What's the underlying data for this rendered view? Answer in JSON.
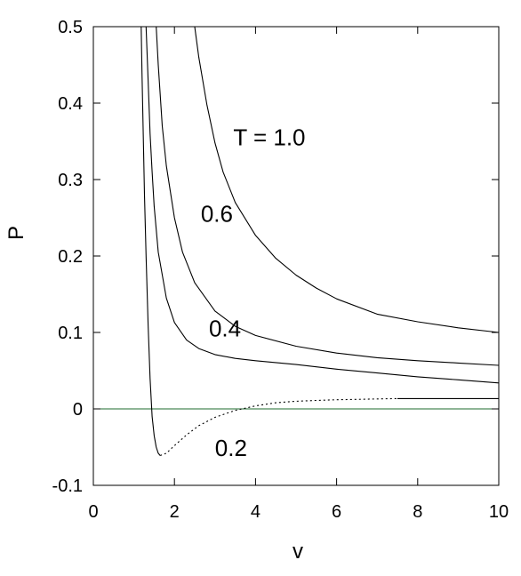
{
  "chart_data": {
    "type": "line",
    "title": "",
    "xlabel": "v",
    "ylabel": "P",
    "xlim": [
      0,
      10
    ],
    "ylim": [
      -0.1,
      0.5
    ],
    "x_ticks": [
      "0",
      "2",
      "4",
      "6",
      "8",
      "10"
    ],
    "y_ticks": [
      "-0.1",
      "0",
      "0.1",
      "0.2",
      "0.3",
      "0.4",
      "0.5"
    ],
    "grid": false,
    "zero_line": {
      "y": 0,
      "color": "#1e6b2e"
    },
    "series": [
      {
        "name": "T = 1.0",
        "color": "#000000",
        "x": [
          2.5,
          2.6,
          2.8,
          3.0,
          3.2,
          3.5,
          4.0,
          4.5,
          5.0,
          5.5,
          6.0,
          7.0,
          8.0,
          9.0,
          10.0
        ],
        "y": [
          0.5,
          0.46,
          0.398,
          0.348,
          0.31,
          0.27,
          0.227,
          0.197,
          0.175,
          0.158,
          0.144,
          0.124,
          0.114,
          0.106,
          0.1
        ]
      },
      {
        "name": "0.6",
        "color": "#000000",
        "x": [
          1.55,
          1.6,
          1.7,
          1.8,
          2.0,
          2.2,
          2.5,
          3.0,
          3.5,
          4.0,
          5.0,
          6.0,
          7.0,
          8.0,
          9.0,
          10.0
        ],
        "y": [
          0.5,
          0.45,
          0.37,
          0.318,
          0.25,
          0.205,
          0.165,
          0.128,
          0.108,
          0.096,
          0.082,
          0.073,
          0.067,
          0.063,
          0.06,
          0.057
        ]
      },
      {
        "name": "0.4",
        "color": "#000000",
        "x": [
          1.3,
          1.35,
          1.4,
          1.45,
          1.5,
          1.6,
          1.8,
          2.0,
          2.3,
          2.6,
          3.0,
          3.5,
          4.0,
          5.0,
          6.0,
          7.0,
          8.0,
          9.0,
          10.0
        ],
        "y": [
          0.5,
          0.43,
          0.36,
          0.31,
          0.265,
          0.205,
          0.145,
          0.113,
          0.09,
          0.079,
          0.071,
          0.066,
          0.063,
          0.058,
          0.052,
          0.047,
          0.042,
          0.038,
          0.034
        ]
      },
      {
        "name": "0.2",
        "color": "#000000",
        "x": [
          1.18,
          1.2,
          1.23,
          1.26,
          1.3,
          1.35,
          1.4,
          1.45,
          1.5,
          1.55,
          1.6,
          1.65
        ],
        "y": [
          0.5,
          0.44,
          0.36,
          0.28,
          0.2,
          0.11,
          0.04,
          -0.01,
          -0.035,
          -0.05,
          -0.058,
          -0.061
        ]
      },
      {
        "name": "0.2",
        "style": "dotted",
        "color": "#000000",
        "x": [
          1.65,
          1.8,
          2.0,
          2.3,
          2.6,
          3.0,
          3.5,
          4.0,
          4.5,
          5.0,
          5.5,
          6.0,
          6.5,
          7.0,
          7.5
        ],
        "y": [
          -0.061,
          -0.058,
          -0.048,
          -0.034,
          -0.022,
          -0.011,
          -0.002,
          0.004,
          0.008,
          0.01,
          0.011,
          0.012,
          0.0125,
          0.013,
          0.0135
        ]
      },
      {
        "name": "0.2",
        "color": "#000000",
        "x": [
          7.5,
          8.0,
          9.0,
          10.0
        ],
        "y": [
          0.0135,
          0.0135,
          0.0135,
          0.0135
        ]
      }
    ],
    "annotations": [
      {
        "text": "T = 1.0",
        "x": 3.45,
        "y": 0.355
      },
      {
        "text": "0.6",
        "x": 2.65,
        "y": 0.255
      },
      {
        "text": "0.4",
        "x": 2.85,
        "y": 0.105
      },
      {
        "text": "0.2",
        "x": 3.0,
        "y": -0.051
      }
    ]
  }
}
